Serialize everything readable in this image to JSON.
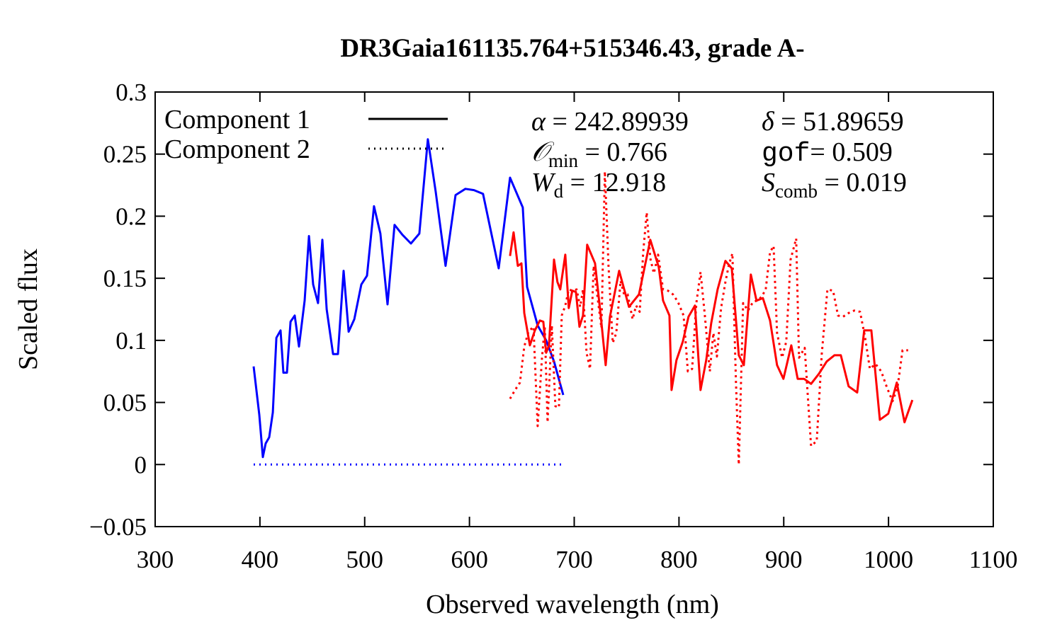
{
  "chart_data": {
    "type": "line",
    "title": "DR3Gaia161135.764+515346.43, grade A-",
    "x_label": "Observed wavelength (nm)",
    "y_label": "Scaled flux",
    "xlim": [
      300,
      1100
    ],
    "ylim": [
      -0.05,
      0.3
    ],
    "xticks": [
      300,
      400,
      500,
      600,
      700,
      800,
      900,
      1000,
      1100
    ],
    "yticks": [
      {
        "value": -0.05,
        "label": "−0.05"
      },
      0,
      0.05,
      0.1,
      0.15,
      0.2,
      0.25,
      0.3
    ],
    "grid": false,
    "legend": "top-left",
    "legend_color": "#000000",
    "annotations": [
      {
        "symbol": "α",
        "text": " = 242.89939"
      },
      {
        "symbol": "δ",
        "text": " = 51.89659"
      },
      {
        "symbol": "𝒪",
        "sub": "min",
        "text": " = 0.766"
      },
      {
        "symbol": "gof",
        "text": "= 0.509"
      },
      {
        "symbol": "W",
        "sub": "d",
        "text": " = 12.918"
      },
      {
        "symbol": "S",
        "sub": "comb",
        "text": " = 0.019"
      }
    ],
    "components": [
      {
        "name": "Component 1",
        "dash": "solid",
        "segments": [
          {
            "color": "#0000ff",
            "x": [
              394,
              399.4,
              402.8,
              405.5,
              408.9,
              412.3,
              415.7,
              419.7,
              422.4,
              425.8,
              429.2,
              433.2,
              437.3,
              442.7,
              446.8,
              450.8,
              455.5,
              459.6,
              463.7,
              469.8,
              474.5,
              479.9,
              484.7,
              490.1,
              496.8,
              502.2,
              508.9,
              515,
              521.8,
              528.5,
              536,
              544.1,
              552.2,
              560.3,
              567.7,
              577.2,
              586.7,
              596.1,
              604.3,
              613,
              627.9,
              638.7,
              650.9,
              655,
              665.1,
              673.2,
              680.7,
              689.5
            ],
            "values": [
              0.079,
              0.04,
              0.006,
              0.017,
              0.022,
              0.042,
              0.102,
              0.108,
              0.074,
              0.074,
              0.115,
              0.12,
              0.095,
              0.132,
              0.184,
              0.145,
              0.13,
              0.181,
              0.125,
              0.089,
              0.089,
              0.156,
              0.107,
              0.117,
              0.145,
              0.152,
              0.208,
              0.186,
              0.129,
              0.193,
              0.185,
              0.178,
              0.186,
              0.262,
              0.22,
              0.16,
              0.217,
              0.222,
              0.221,
              0.218,
              0.158,
              0.231,
              0.207,
              0.143,
              0.112,
              0.1,
              0.083,
              0.056
            ]
          },
          {
            "color": "#ff0000",
            "x": [
              638.7,
              642.1,
              646.2,
              649.6,
              652.3,
              657.7,
              662.5,
              667.2,
              670.5,
              673.2,
              675.9,
              680.7,
              684,
              686.7,
              691.5,
              694.8,
              698.2,
              701.6,
              705,
              708.4,
              712.4,
              719.9,
              725.3,
              730,
              734.1,
              742.9,
              752.3,
              761.8,
              772.6,
              780.7,
              784.8,
              790.9,
              792.9,
              797.6,
              803.7,
              809.1,
              815.2,
              820.6,
              826,
              830.8,
              836.9,
              844.3,
              850.4,
              857.1,
              861.9,
              868.6,
              874,
              880.1,
              886.9,
              893.6,
              899.7,
              907.2,
              913.3,
              919.3,
              926.1,
              933.5,
              941,
              948.4,
              954.5,
              961.9,
              970.1,
              976.8,
              983.6,
              991.7,
              999.8,
              1007.9,
              1015.3,
              1022.8
            ],
            "values": [
              0.168,
              0.187,
              0.16,
              0.162,
              0.122,
              0.096,
              0.108,
              0.116,
              0.115,
              0.09,
              0.096,
              0.165,
              0.147,
              0.141,
              0.169,
              0.126,
              0.14,
              0.139,
              0.111,
              0.12,
              0.177,
              0.162,
              0.12,
              0.08,
              0.119,
              0.156,
              0.127,
              0.137,
              0.181,
              0.159,
              0.132,
              0.12,
              0.06,
              0.084,
              0.099,
              0.119,
              0.128,
              0.06,
              0.084,
              0.114,
              0.141,
              0.164,
              0.158,
              0.088,
              0.08,
              0.153,
              0.132,
              0.134,
              0.116,
              0.08,
              0.069,
              0.096,
              0.069,
              0.069,
              0.065,
              0.073,
              0.083,
              0.088,
              0.088,
              0.063,
              0.058,
              0.108,
              0.108,
              0.036,
              0.041,
              0.066,
              0.034,
              0.052
            ]
          }
        ]
      },
      {
        "name": "Component 2",
        "dash": "dotted",
        "segments": [
          {
            "color": "#0000ff",
            "x": [
              394,
              420,
              450,
              480,
              510,
              540,
              570,
              600,
              630,
              660,
              690
            ],
            "values": [
              0,
              0,
              0,
              0,
              0,
              0,
              0,
              0,
              0,
              0,
              0
            ]
          },
          {
            "color": "#ff0000",
            "x": [
              638.7,
              643.5,
              648.2,
              652.3,
              656.3,
              661.1,
              665.1,
              669.2,
              671.9,
              674.6,
              678.6,
              682,
              685.4,
              688.1,
              691.5,
              694.8,
              698.2,
              702.3,
              705.7,
              708.4,
              711.8,
              715.1,
              718.5,
              721.9,
              726,
              729.3,
              732.7,
              736.8,
              740.2,
              744.2,
              747.6,
              751,
              755.7,
              759.1,
              762.5,
              765.9,
              769.2,
              772.6,
              776,
              780.1,
              784.8,
              789.5,
              794.3,
              799,
              804.4,
              808.5,
              812.5,
              816.6,
              820.6,
              824.7,
              829.4,
              832.8,
              836.2,
              840.2,
              844.3,
              847.7,
              851,
              854.4,
              857.1,
              861.2,
              865.9,
              870.7,
              874.7,
              878.8,
              882.8,
              886.9,
              890.3,
              893.6,
              898.4,
              902.4,
              906.5,
              911.9,
              914.6,
              920,
              926.1,
              931.5,
              936.3,
              941.7,
              947.1,
              951.8,
              956.5,
              961.9,
              967.3,
              972.8,
              977.5,
              982.2,
              987.6,
              993.1,
              998.5,
              1003.9,
              1008.6,
              1013.4,
              1018.7
            ],
            "values": [
              0.053,
              0.06,
              0.066,
              0.095,
              0.107,
              0.111,
              0.031,
              0.086,
              0.111,
              0.034,
              0.112,
              0.047,
              0.046,
              0.12,
              0.128,
              0.141,
              0.14,
              0.141,
              0.127,
              0.141,
              0.09,
              0.077,
              0.16,
              0.137,
              0.11,
              0.236,
              0.16,
              0.098,
              0.106,
              0.148,
              0.137,
              0.137,
              0.117,
              0.128,
              0.123,
              0.171,
              0.203,
              0.166,
              0.154,
              0.169,
              0.141,
              0.14,
              0.137,
              0.131,
              0.12,
              0.075,
              0.077,
              0.13,
              0.155,
              0.12,
              0.075,
              0.106,
              0.087,
              0.126,
              0.147,
              0.161,
              0.17,
              0.066,
              0,
              0.13,
              0.124,
              0.131,
              0.132,
              0.135,
              0.141,
              0.171,
              0.176,
              0.106,
              0.086,
              0.099,
              0.165,
              0.182,
              0.086,
              0.094,
              0.015,
              0.019,
              0.089,
              0.141,
              0.14,
              0.12,
              0.119,
              0.122,
              0.124,
              0.123,
              0.103,
              0.077,
              0.081,
              0.075,
              0.062,
              0.051,
              0.062,
              0.092,
              0.092
            ]
          }
        ]
      }
    ]
  }
}
